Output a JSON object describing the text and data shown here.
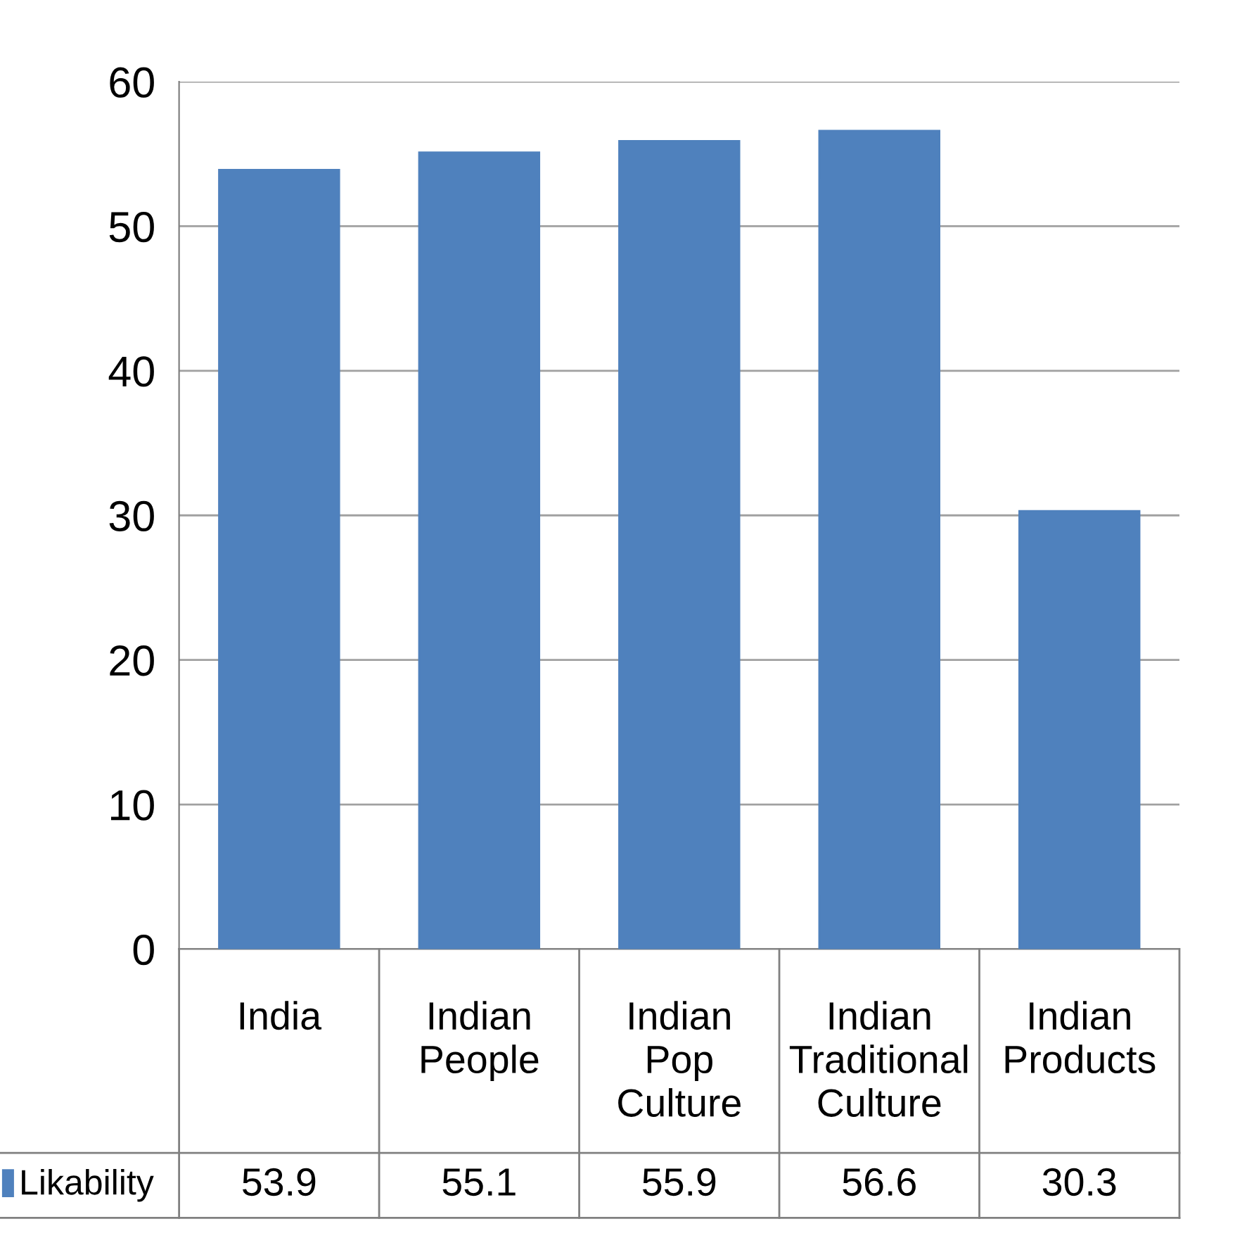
{
  "chart_data": {
    "type": "bar",
    "categories": [
      "India",
      "Indian People",
      "Indian Pop Culture",
      "Indian Traditional Culture",
      "Indian Products"
    ],
    "series": [
      {
        "name": "Likability",
        "color": "#4f81bd",
        "values": [
          53.9,
          55.1,
          55.9,
          56.6,
          30.3
        ]
      }
    ],
    "ylim": [
      0,
      60
    ],
    "yticks": [
      0,
      10,
      20,
      30,
      40,
      50,
      60
    ],
    "grid": "y",
    "data_labels": true
  }
}
